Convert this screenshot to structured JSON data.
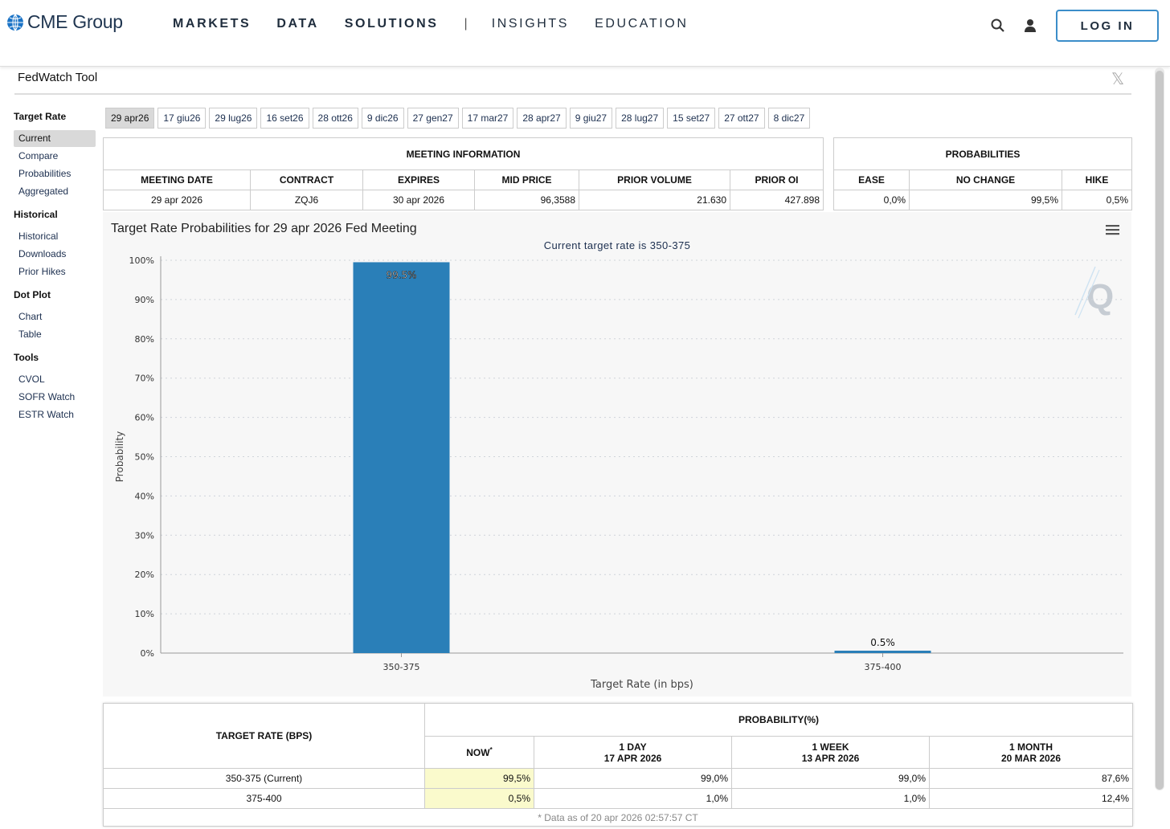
{
  "header": {
    "logo_text": "CME Group",
    "nav": [
      "MARKETS",
      "DATA",
      "SOLUTIONS",
      "|",
      "INSIGHTS",
      "EDUCATION"
    ],
    "login_label": "LOG IN"
  },
  "page": {
    "title": "FedWatch Tool",
    "share_icon": "x-logo-icon"
  },
  "sidebar": {
    "sections": [
      {
        "heading": "Target Rate",
        "items": [
          "Current",
          "Compare",
          "Probabilities",
          "Aggregated"
        ],
        "active": "Current"
      },
      {
        "heading": "Historical",
        "items": [
          "Historical",
          "Downloads",
          "Prior Hikes"
        ]
      },
      {
        "heading": "Dot Plot",
        "items": [
          "Chart",
          "Table"
        ]
      },
      {
        "heading": "Tools",
        "items": [
          "CVOL",
          "SOFR Watch",
          "ESTR Watch"
        ]
      }
    ]
  },
  "tabs": {
    "items": [
      "29 apr26",
      "17 giu26",
      "29 lug26",
      "16 set26",
      "28 ott26",
      "9 dic26",
      "27 gen27",
      "17 mar27",
      "28 apr27",
      "9 giu27",
      "28 lug27",
      "15 set27",
      "27 ott27",
      "8 dic27"
    ],
    "active": "29 apr26"
  },
  "meeting_info": {
    "caption": "MEETING INFORMATION",
    "headers": [
      "MEETING DATE",
      "CONTRACT",
      "EXPIRES",
      "MID PRICE",
      "PRIOR VOLUME",
      "PRIOR OI"
    ],
    "row": [
      "29 apr 2026",
      "ZQJ6",
      "30 apr 2026",
      "96,3588",
      "21.630",
      "427.898"
    ]
  },
  "probabilities": {
    "caption": "PROBABILITIES",
    "headers": [
      "EASE",
      "NO CHANGE",
      "HIKE"
    ],
    "row": [
      "0,0%",
      "99,5%",
      "0,5%"
    ]
  },
  "chart_data": {
    "type": "bar",
    "title": "Target Rate Probabilities for 29 apr 2026 Fed Meeting",
    "subtitle": "Current target rate is 350-375",
    "categories": [
      "350-375",
      "375-400"
    ],
    "values": [
      99.5,
      0.5
    ],
    "data_labels": [
      "99.5%",
      "0.5%"
    ],
    "xlabel": "Target Rate (in bps)",
    "ylabel": "Probability",
    "ylim": [
      0,
      100
    ],
    "yticks": [
      "0%",
      "10%",
      "20%",
      "30%",
      "40%",
      "50%",
      "60%",
      "70%",
      "80%",
      "90%",
      "100%"
    ],
    "bar_color": "#2a7fb8",
    "grid": true
  },
  "prob_table": {
    "col_header": "TARGET RATE (BPS)",
    "group_header": "PROBABILITY(%)",
    "sub_headers": [
      {
        "line1": "NOW",
        "line2": "",
        "mark": "*"
      },
      {
        "line1": "1 DAY",
        "line2": "17 APR 2026"
      },
      {
        "line1": "1 WEEK",
        "line2": "13 APR 2026"
      },
      {
        "line1": "1 MONTH",
        "line2": "20 MAR 2026"
      }
    ],
    "rows": [
      {
        "rate": "350-375 (Current)",
        "values": [
          "99,5%",
          "99,0%",
          "99,0%",
          "87,6%"
        ]
      },
      {
        "rate": "375-400",
        "values": [
          "0,5%",
          "1,0%",
          "1,0%",
          "12,4%"
        ]
      }
    ],
    "footnote": "* Data as of 20 apr 2026 02:57:57 CT"
  }
}
